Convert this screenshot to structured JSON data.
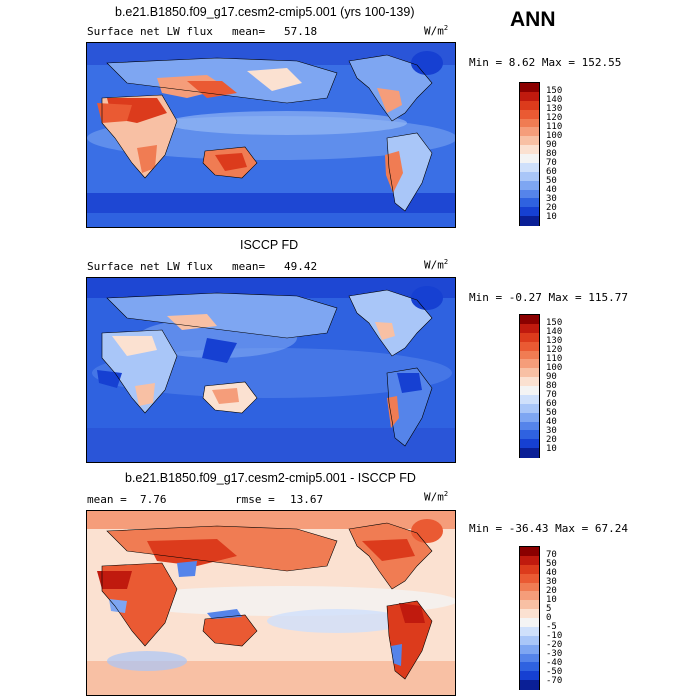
{
  "season": "ANN",
  "panels": [
    {
      "title": "b.e21.B1850.f09_g17.cesm2-cmip5.001 (yrs 100-139)",
      "variable": "Surface net LW flux",
      "stat_label": "mean=",
      "stat_value": "57.18",
      "units": "W/m",
      "units_exp": "2",
      "range": "Min =   8.62 Max = 152.55",
      "colorbar": {
        "labels": [
          "150",
          "140",
          "130",
          "120",
          "110",
          "100",
          "90",
          "80",
          "70",
          "60",
          "50",
          "40",
          "30",
          "20",
          "10"
        ],
        "colors": [
          "#8b0000",
          "#c01a0e",
          "#dc3b1c",
          "#ea5a33",
          "#f07c53",
          "#f59d7a",
          "#f8c0a4",
          "#fbe1d1",
          "#f4f4f4",
          "#cfe0fb",
          "#a9c6f8",
          "#7ea6f2",
          "#5584ea",
          "#2f62e0",
          "#1640d2",
          "#0a1f96"
        ]
      }
    },
    {
      "title": "ISCCP FD",
      "variable": "Surface net LW flux",
      "stat_label": "mean=",
      "stat_value": "49.42",
      "units": "W/m",
      "units_exp": "2",
      "range": "Min =  -0.27 Max = 115.77",
      "colorbar": {
        "labels": [
          "150",
          "140",
          "130",
          "120",
          "110",
          "100",
          "90",
          "80",
          "70",
          "60",
          "50",
          "40",
          "30",
          "20",
          "10"
        ],
        "colors": [
          "#8b0000",
          "#c01a0e",
          "#dc3b1c",
          "#ea5a33",
          "#f07c53",
          "#f59d7a",
          "#f8c0a4",
          "#fbe1d1",
          "#f4f4f4",
          "#cfe0fb",
          "#a9c6f8",
          "#7ea6f2",
          "#5584ea",
          "#2f62e0",
          "#1640d2",
          "#0a1f96"
        ]
      }
    },
    {
      "title": "b.e21.B1850.f09_g17.cesm2-cmip5.001 - ISCCP FD",
      "stat_label": "mean =",
      "stat_value": "7.76",
      "stat2_label": "rmse =",
      "stat2_value": "13.67",
      "units": "W/m",
      "units_exp": "2",
      "range": "Min = -36.43 Max =  67.24",
      "colorbar": {
        "labels": [
          "70",
          "50",
          "40",
          "30",
          "20",
          "10",
          "5",
          "0",
          "-5",
          "-10",
          "-20",
          "-30",
          "-40",
          "-50",
          "-70"
        ],
        "colors": [
          "#8b0000",
          "#c01a0e",
          "#dc3b1c",
          "#ea5a33",
          "#f07c53",
          "#f59d7a",
          "#f8c0a4",
          "#fbe1d1",
          "#f4f4f4",
          "#cfe0fb",
          "#a9c6f8",
          "#7ea6f2",
          "#5584ea",
          "#2f62e0",
          "#1640d2",
          "#0a1f96"
        ]
      }
    }
  ]
}
